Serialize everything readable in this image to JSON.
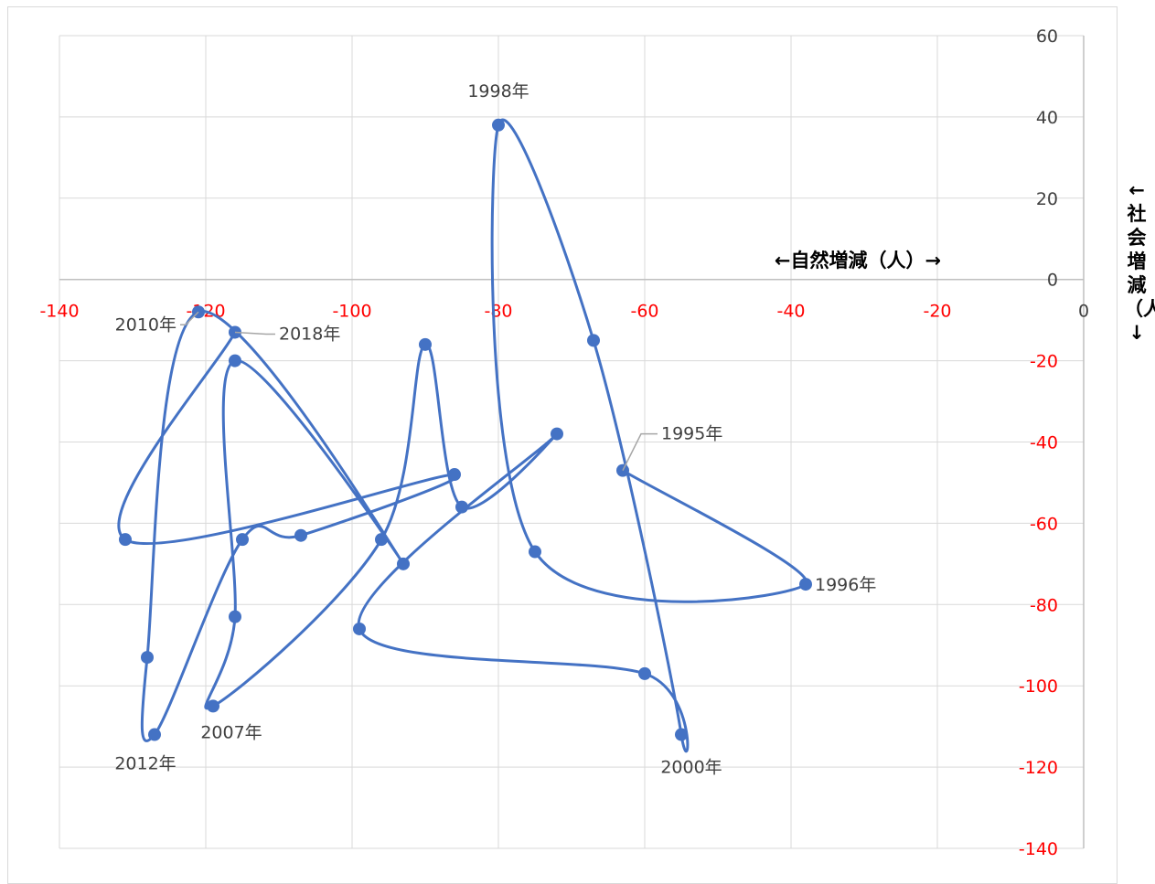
{
  "chart_data": {
    "type": "scatter",
    "title": "",
    "xlabel": "←自然増減（人）→",
    "ylabel": "←社会増減（人）↓",
    "xlim": [
      -140,
      0
    ],
    "ylim": [
      -140,
      60
    ],
    "x_ticks": [
      "-140",
      "-120",
      "-100",
      "-80",
      "-60",
      "-40",
      "-20",
      "0"
    ],
    "y_ticks": [
      "60",
      "40",
      "20",
      "0",
      "-20",
      "-40",
      "-60",
      "-80",
      "-100",
      "-120",
      "-140"
    ],
    "grid": true,
    "legend": "none",
    "smooth": true,
    "colors": {
      "series": "#4472C4",
      "negative_ticks": "#FF0000",
      "positive_ticks": "#404040",
      "grid": "#d9d9d9"
    },
    "series": [
      {
        "points": [
          {
            "x": -63,
            "y": -47,
            "label": "1995年"
          },
          {
            "x": -38,
            "y": -75,
            "label": "1996年"
          },
          {
            "x": -75,
            "y": -67
          },
          {
            "x": -80,
            "y": 38,
            "label": "1998年"
          },
          {
            "x": -67,
            "y": -15
          },
          {
            "x": -55,
            "y": -112,
            "label": "2000年"
          },
          {
            "x": -60,
            "y": -97
          },
          {
            "x": -99,
            "y": -86
          },
          {
            "x": -72,
            "y": -38
          },
          {
            "x": -85,
            "y": -56
          },
          {
            "x": -90,
            "y": -16
          },
          {
            "x": -96,
            "y": -64
          },
          {
            "x": -119,
            "y": -105,
            "label": "2007年"
          },
          {
            "x": -116,
            "y": -83
          },
          {
            "x": -116,
            "y": -20
          },
          {
            "x": -93,
            "y": -70
          },
          {
            "x": -121,
            "y": -8,
            "label": "2010年"
          },
          {
            "x": -128,
            "y": -93
          },
          {
            "x": -127,
            "y": -112,
            "label": "2012年"
          },
          {
            "x": -115,
            "y": -64
          },
          {
            "x": -107,
            "y": -63
          },
          {
            "x": -86,
            "y": -48
          },
          {
            "x": -131,
            "y": -64
          },
          {
            "x": -116,
            "y": -13,
            "label": "2018年"
          }
        ]
      }
    ]
  }
}
